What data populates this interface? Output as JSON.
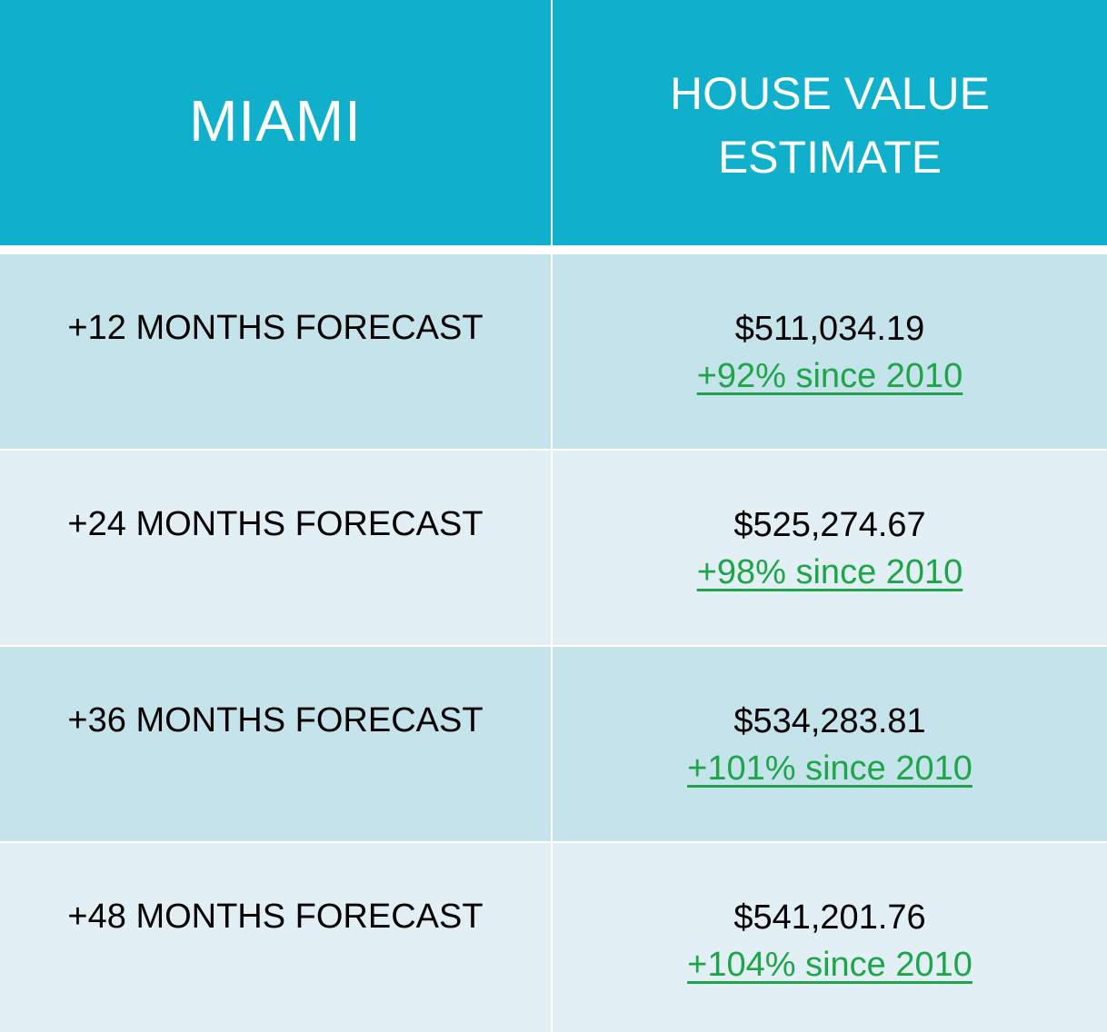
{
  "header": {
    "city": "MIAMI",
    "value_title_line1": "HOUSE VALUE",
    "value_title_line2": "ESTIMATE"
  },
  "rows": [
    {
      "period": "+12 MONTHS FORECAST",
      "value": "$511,034.19",
      "change": "+92% since 2010"
    },
    {
      "period": "+24 MONTHS FORECAST",
      "value": "$525,274.67",
      "change": "+98% since 2010"
    },
    {
      "period": "+36 MONTHS FORECAST",
      "value": "$534,283.81",
      "change": "+101% since 2010"
    },
    {
      "period": "+48 MONTHS FORECAST",
      "value": "$541,201.76",
      "change": "+104% since 2010"
    }
  ],
  "colors": {
    "header_bg": "#10afcc",
    "row_dark": "#c5e3ea",
    "row_light": "#e2eff4",
    "change_text": "#1ea54a"
  }
}
